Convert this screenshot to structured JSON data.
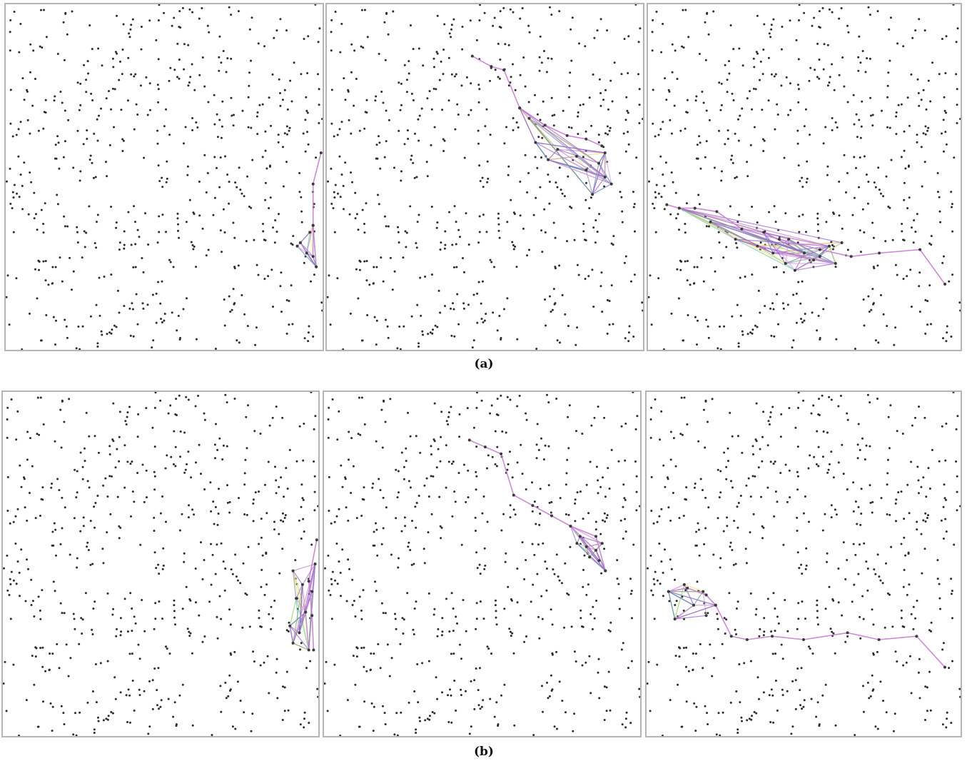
{
  "figure": {
    "captions": {
      "a": "(a)",
      "b": "(b)"
    }
  },
  "point_field": {
    "seed": 9137,
    "count": 560,
    "dot_color": "#2b2b2b"
  },
  "path_colors": [
    "#c77dcf",
    "#9a63c4",
    "#8fcf6a",
    "#e8e07a",
    "#7ac7b0",
    "#5a7fb8",
    "#cfa0e0"
  ],
  "panels": [
    {
      "row": "a",
      "index": 1,
      "main_path": [
        [
          0.995,
          0.43
        ],
        [
          0.97,
          0.52
        ],
        [
          0.97,
          0.64
        ],
        [
          0.98,
          0.76
        ]
      ],
      "cluster": [
        [
          0.97,
          0.64
        ],
        [
          0.96,
          0.66
        ],
        [
          0.93,
          0.69
        ],
        [
          0.95,
          0.72
        ],
        [
          0.92,
          0.7
        ],
        [
          0.98,
          0.76
        ],
        [
          0.97,
          0.73
        ]
      ]
    },
    {
      "row": "a",
      "index": 2,
      "main_path": [
        [
          0.46,
          0.15
        ],
        [
          0.52,
          0.18
        ],
        [
          0.56,
          0.19
        ],
        [
          0.61,
          0.3
        ],
        [
          0.69,
          0.35
        ],
        [
          0.76,
          0.38
        ],
        [
          0.82,
          0.39
        ],
        [
          0.87,
          0.41
        ]
      ],
      "cluster": [
        [
          0.61,
          0.3
        ],
        [
          0.64,
          0.33
        ],
        [
          0.7,
          0.45
        ],
        [
          0.66,
          0.4
        ],
        [
          0.73,
          0.42
        ],
        [
          0.79,
          0.44
        ],
        [
          0.86,
          0.46
        ],
        [
          0.82,
          0.48
        ],
        [
          0.88,
          0.5
        ],
        [
          0.9,
          0.52
        ],
        [
          0.84,
          0.55
        ],
        [
          0.88,
          0.43
        ]
      ]
    },
    {
      "row": "a",
      "index": 3,
      "main_path": [
        [
          0.06,
          0.58
        ],
        [
          0.1,
          0.59
        ],
        [
          0.15,
          0.59
        ],
        [
          0.22,
          0.6
        ],
        [
          0.3,
          0.65
        ],
        [
          0.42,
          0.68
        ],
        [
          0.55,
          0.71
        ],
        [
          0.65,
          0.73
        ],
        [
          0.74,
          0.72
        ],
        [
          0.87,
          0.71
        ],
        [
          0.95,
          0.81
        ]
      ],
      "cluster": [
        [
          0.1,
          0.59
        ],
        [
          0.2,
          0.63
        ],
        [
          0.28,
          0.68
        ],
        [
          0.35,
          0.7
        ],
        [
          0.4,
          0.72
        ],
        [
          0.44,
          0.75
        ],
        [
          0.47,
          0.77
        ],
        [
          0.53,
          0.74
        ],
        [
          0.58,
          0.7
        ],
        [
          0.6,
          0.75
        ],
        [
          0.5,
          0.72
        ],
        [
          0.45,
          0.68
        ],
        [
          0.37,
          0.66
        ],
        [
          0.55,
          0.73
        ],
        [
          0.62,
          0.69
        ]
      ]
    },
    {
      "row": "b",
      "index": 1,
      "main_path": [
        [
          0.995,
          0.43
        ],
        [
          0.97,
          0.55
        ],
        [
          0.98,
          0.65
        ],
        [
          0.985,
          0.75
        ]
      ],
      "cluster": [
        [
          0.92,
          0.52
        ],
        [
          0.95,
          0.56
        ],
        [
          0.93,
          0.6
        ],
        [
          0.96,
          0.64
        ],
        [
          0.91,
          0.68
        ],
        [
          0.94,
          0.7
        ],
        [
          0.98,
          0.58
        ],
        [
          0.97,
          0.75
        ],
        [
          0.92,
          0.73
        ],
        [
          0.99,
          0.5
        ]
      ]
    },
    {
      "row": "b",
      "index": 2,
      "main_path": [
        [
          0.46,
          0.14
        ],
        [
          0.51,
          0.16
        ],
        [
          0.56,
          0.18
        ],
        [
          0.6,
          0.3
        ],
        [
          0.66,
          0.33
        ],
        [
          0.72,
          0.36
        ],
        [
          0.78,
          0.39
        ],
        [
          0.86,
          0.42
        ],
        [
          0.89,
          0.52
        ]
      ],
      "cluster": [
        [
          0.78,
          0.39
        ],
        [
          0.81,
          0.42
        ],
        [
          0.83,
          0.45
        ],
        [
          0.86,
          0.46
        ],
        [
          0.84,
          0.48
        ],
        [
          0.88,
          0.44
        ],
        [
          0.8,
          0.44
        ],
        [
          0.89,
          0.52
        ],
        [
          0.87,
          0.49
        ]
      ]
    },
    {
      "row": "b",
      "index": 3,
      "main_path": [
        [
          0.07,
          0.58
        ],
        [
          0.13,
          0.57
        ],
        [
          0.19,
          0.59
        ],
        [
          0.22,
          0.62
        ],
        [
          0.27,
          0.71
        ],
        [
          0.32,
          0.72
        ],
        [
          0.4,
          0.71
        ],
        [
          0.5,
          0.72
        ],
        [
          0.64,
          0.7
        ],
        [
          0.74,
          0.72
        ],
        [
          0.86,
          0.71
        ],
        [
          0.95,
          0.8
        ]
      ],
      "cluster": [
        [
          0.07,
          0.58
        ],
        [
          0.12,
          0.56
        ],
        [
          0.18,
          0.58
        ],
        [
          0.15,
          0.62
        ],
        [
          0.09,
          0.66
        ],
        [
          0.19,
          0.65
        ],
        [
          0.22,
          0.62
        ]
      ]
    }
  ]
}
